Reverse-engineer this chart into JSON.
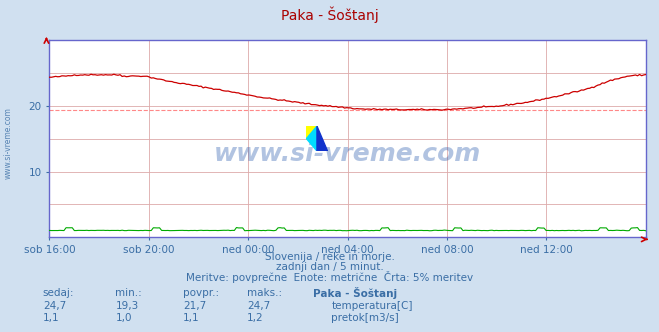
{
  "title": "Paka - Šoštanj",
  "background_color": "#d0e0f0",
  "plot_bg_color": "#ffffff",
  "grid_color": "#ddaaaa",
  "border_color": "#6666cc",
  "x_labels": [
    "sob 16:00",
    "sob 20:00",
    "ned 00:00",
    "ned 04:00",
    "ned 08:00",
    "ned 12:00"
  ],
  "y_min": 0,
  "y_max": 30,
  "y_tick_vals": [
    10,
    20
  ],
  "avg_line_value": 19.3,
  "avg_line_color": "#ff8888",
  "temp_color": "#cc0000",
  "flow_color": "#00aa00",
  "watermark_text": "www.si-vreme.com",
  "watermark_color": "#2255aa",
  "watermark_alpha": 0.35,
  "subtitle1": "Slovenija / reke in morje.",
  "subtitle2": "zadnji dan / 5 minut.",
  "subtitle3": "Meritve: povprečne  Enote: metrične  Črta: 5% meritev",
  "subtitle_color": "#3a6ea5",
  "table_header": [
    "sedaj:",
    "min.:",
    "povpr.:",
    "maks.:",
    "Paka - Šoštanj"
  ],
  "table_temp": [
    "24,7",
    "19,3",
    "21,7",
    "24,7",
    "temperatura[C]"
  ],
  "table_flow": [
    "1,1",
    "1,0",
    "1,1",
    "1,2",
    "pretok[m3/s]"
  ],
  "table_color": "#3a6ea5",
  "n_points": 288,
  "axis_label_color": "#3a6ea5",
  "tick_color": "#3a6ea5",
  "title_color": "#aa0000",
  "left_label_color": "#3a6ea5",
  "arrow_color": "#cc0000"
}
